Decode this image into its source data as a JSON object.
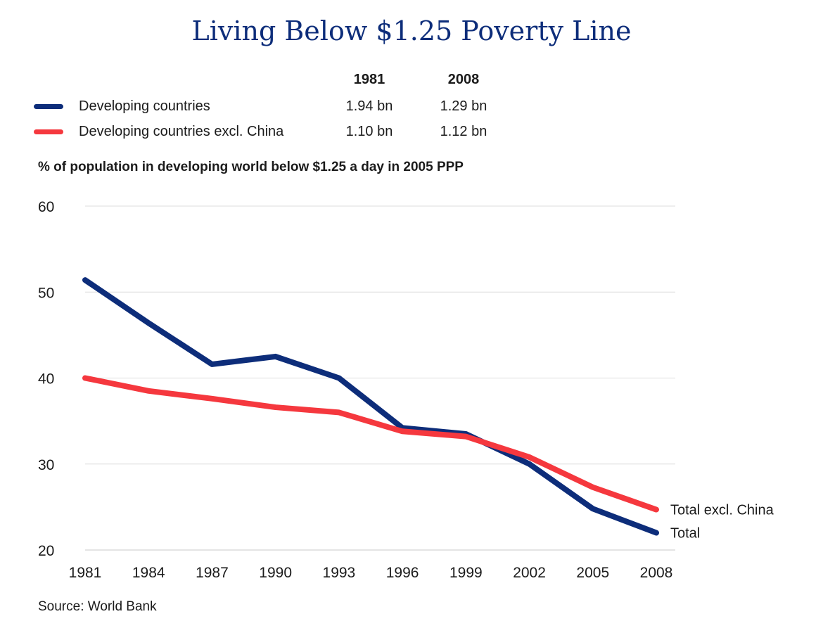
{
  "chart_data": {
    "type": "line",
    "title": "Living Below $1.25 Poverty Line",
    "subtitle": "% of population in developing world below $1.25 a day in 2005 PPP",
    "source": "Source: World Bank",
    "x": [
      1981,
      1984,
      1987,
      1990,
      1993,
      1996,
      1999,
      2002,
      2005,
      2008
    ],
    "x_tick_labels": [
      "1981",
      "1984",
      "1987",
      "1990",
      "1993",
      "1996",
      "1999",
      "2002",
      "2005",
      "2008"
    ],
    "y_ticks": [
      20,
      30,
      40,
      50,
      60
    ],
    "ylim": [
      20,
      60
    ],
    "grid": true,
    "legend": {
      "placement": "top-left",
      "columns": [
        "1981",
        "2008"
      ],
      "rows": [
        {
          "name": "Developing countries",
          "color": "#0d2d7a",
          "v1981": "1.94 bn",
          "v2008": "1.29 bn"
        },
        {
          "name": "Developing countries excl. China",
          "color": "#f5383e",
          "v1981": "1.10 bn",
          "v2008": "1.12 bn"
        }
      ]
    },
    "series": [
      {
        "name": "Total",
        "color": "#0d2d7a",
        "values": [
          51.4,
          46.4,
          41.6,
          42.5,
          40.0,
          34.2,
          33.5,
          30.0,
          24.8,
          22.0
        ]
      },
      {
        "name": "Total excl. China",
        "color": "#f5383e",
        "values": [
          40.0,
          38.5,
          37.6,
          36.6,
          36.0,
          33.8,
          33.2,
          30.8,
          27.3,
          24.7
        ]
      }
    ]
  }
}
